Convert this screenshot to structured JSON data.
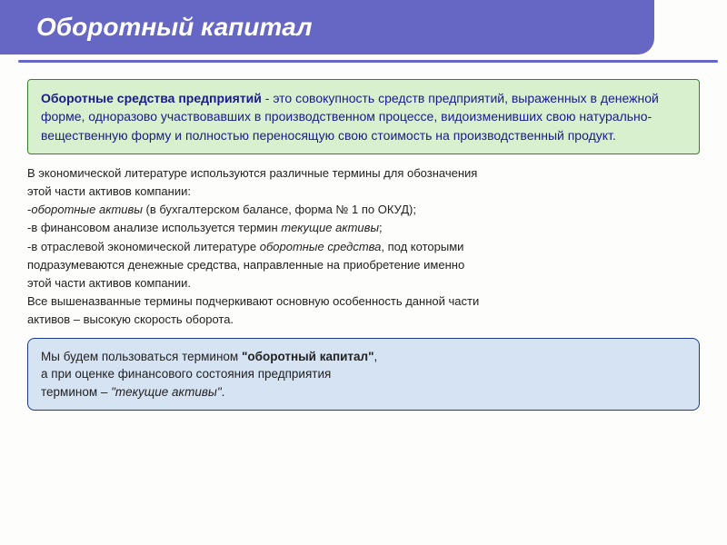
{
  "colors": {
    "title_bg": "#6666c4",
    "title_text": "#ffffff",
    "def_bg": "#d9f0cf",
    "def_border": "#2a8a2a",
    "def_text": "#1a1a8a",
    "body_text": "#222222",
    "bottom_bg": "#d6e3f3",
    "bottom_border": "#1a3a8a",
    "page_bg": "#fdfdfb"
  },
  "typography": {
    "title_fontsize": 28,
    "title_style": "bold italic",
    "def_fontsize": 14,
    "body_fontsize": 13,
    "bottom_fontsize": 13.5,
    "font_family": "Arial"
  },
  "title": "Оборотный капитал",
  "definition": {
    "lead": "Оборотные средства предприятий",
    "rest": " - это совокупность средств предприятий, выраженных в денежной форме, одноразово участвовавших в производственном процессе, видоизменивших свою натурально-вещественную форму и полностью переносящую свою стоимость на производственный продукт."
  },
  "body": {
    "intro1": "В экономической литературе используются различные термины для обозначения",
    "intro2": "этой части активов компании:",
    "bullet1_pre": " -",
    "bullet1_em": "оборотные активы",
    "bullet1_post": " (в бухгалтерском балансе, форма № 1 по ОКУД);",
    "bullet2_pre": " -в финансовом анализе используется термин ",
    "bullet2_em": "текущие активы",
    "bullet2_post": ";",
    "bullet3_pre": " -в отраслевой экономической литературе ",
    "bullet3_em": "оборотные средства",
    "bullet3_post": ", под которыми",
    "bullet3_line2": "подразумеваются денежные средства, направленные на приобретение именно",
    "bullet3_line3": "этой части активов компании.",
    "tail1": "Все вышеназванные термины подчеркивают основную особенность данной части",
    "tail2": "активов – высокую скорость оборота."
  },
  "bottom": {
    "line1_pre": "Мы будем пользоваться термином ",
    "line1_bold": "\"оборотный капитал\"",
    "line1_post": ",",
    "line2_pre": "а при оценке финансового состояния предприятия",
    "line3_pre": "термином – ",
    "line3_ital": "\"текущие активы\"",
    "line3_post": "."
  }
}
